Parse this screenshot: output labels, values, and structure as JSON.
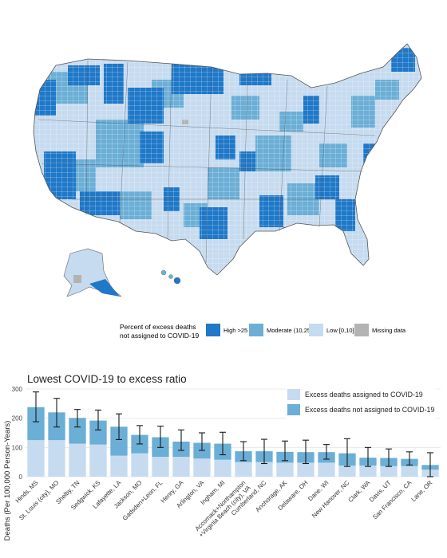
{
  "map": {
    "legend": {
      "title_line1": "Percent of excess deaths",
      "title_line2": "not assigned to COVID-19",
      "items": [
        {
          "label": "High >25",
          "color": "#1f78c8"
        },
        {
          "label": "Moderate (10,25]",
          "color": "#6baed6"
        },
        {
          "label": "Low [0,10]",
          "color": "#c6dbef"
        },
        {
          "label": "Missing data",
          "color": "#b3b3b3"
        }
      ]
    }
  },
  "chart_data": {
    "type": "bar",
    "title": "Lowest COVID-19 to excess ratio",
    "ylabel": "Deaths (Per 100,000 Person-Years)",
    "xlabel": "",
    "ylim": [
      0,
      300
    ],
    "yticks": [
      0,
      100,
      200,
      300
    ],
    "grid": true,
    "legend_position": "top-right",
    "stacked": true,
    "categories": [
      "Hinds, MS",
      "St. Louis (city), MO",
      "Shelby, TN",
      "Sedgwick, KS",
      "Lafayette, LA",
      "Jackson, MO",
      "Gadsden+Leon, FL",
      "Henry, GA",
      "Arlington, VA",
      "Ingham, MI",
      "Accomack+Northampton\n+Virginia Beach (city), VA",
      "Cumberland, NC",
      "Anchorage, AK",
      "Delaware, OH",
      "Dane, WI",
      "New Hanover, NC",
      "Clark, WA",
      "Davis, UT",
      "San Francisco, CA",
      "Lane, OR"
    ],
    "series": [
      {
        "name": "Excess deaths assigned to COVID-19",
        "color": "#c6dbef",
        "values": [
          125,
          125,
          113,
          110,
          72,
          80,
          68,
          68,
          62,
          58,
          50,
          50,
          48,
          48,
          48,
          38,
          38,
          36,
          36,
          24
        ]
      },
      {
        "name": "Excess deaths not assigned to COVID-19",
        "color": "#6baed6",
        "values": [
          113,
          95,
          88,
          82,
          99,
          63,
          67,
          52,
          54,
          55,
          37,
          37,
          37,
          36,
          36,
          42,
          27,
          28,
          25,
          16
        ]
      }
    ],
    "error_bars": {
      "lower": [
        188,
        170,
        170,
        160,
        127,
        112,
        100,
        90,
        90,
        75,
        55,
        45,
        55,
        45,
        60,
        35,
        35,
        35,
        40,
        0
      ],
      "upper": [
        290,
        268,
        230,
        228,
        215,
        175,
        173,
        160,
        150,
        152,
        120,
        128,
        122,
        125,
        110,
        130,
        100,
        95,
        85,
        82
      ]
    }
  }
}
